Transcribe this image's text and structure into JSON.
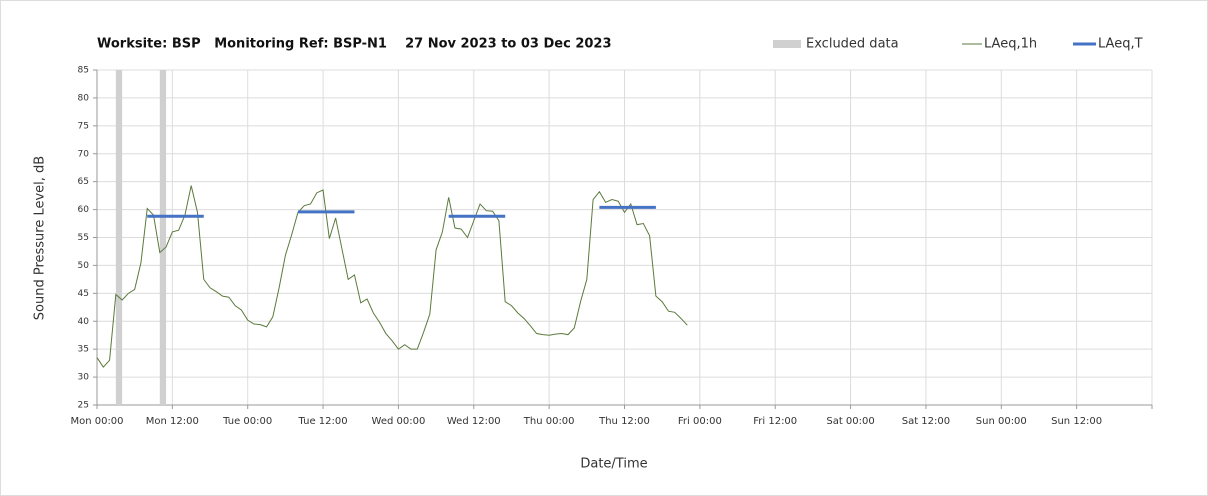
{
  "chart_data": {
    "type": "line",
    "title": "Worksite: BSP   Monitoring Ref: BSP-N1    27 Nov 2023 to 03 Dec 2023",
    "x_label": "Date/Time",
    "y_label": "Sound Pressure Level, dB",
    "xlim": [
      0,
      168
    ],
    "xticks": [
      {
        "value": 0,
        "label": "Mon 00:00"
      },
      {
        "value": 12,
        "label": "Mon 12:00"
      },
      {
        "value": 24,
        "label": "Tue 00:00"
      },
      {
        "value": 36,
        "label": "Tue 12:00"
      },
      {
        "value": 48,
        "label": "Wed 00:00"
      },
      {
        "value": 60,
        "label": "Wed 12:00"
      },
      {
        "value": 72,
        "label": "Thu 00:00"
      },
      {
        "value": 84,
        "label": "Thu 12:00"
      },
      {
        "value": 96,
        "label": "Fri 00:00"
      },
      {
        "value": 108,
        "label": "Fri 12:00"
      },
      {
        "value": 120,
        "label": "Sat 00:00"
      },
      {
        "value": 132,
        "label": "Sat 12:00"
      },
      {
        "value": 144,
        "label": "Sun 00:00"
      },
      {
        "value": 156,
        "label": "Sun 12:00"
      },
      {
        "value": 168,
        "label": ""
      }
    ],
    "ylim": [
      25,
      85
    ],
    "yticks": [
      25,
      30,
      35,
      40,
      45,
      50,
      55,
      60,
      65,
      70,
      75,
      80,
      85
    ],
    "grid": true,
    "legend": "top-right",
    "excluded": {
      "name": "Excluded data",
      "color": "#d0d0d0",
      "periods": [
        [
          3,
          4
        ],
        [
          10,
          11
        ]
      ]
    },
    "series": [
      {
        "name": "LAeq,1h",
        "color": "#5b7a3c",
        "x": [
          0,
          1,
          2,
          3,
          4,
          5,
          6,
          7,
          8,
          9,
          10,
          11,
          12,
          13,
          14,
          15,
          16,
          17,
          18,
          19,
          20,
          21,
          22,
          23,
          24,
          25,
          26,
          27,
          28,
          29,
          30,
          31,
          32,
          33,
          34,
          35,
          36,
          37,
          38,
          39,
          40,
          41,
          42,
          43,
          44,
          45,
          46,
          47,
          48,
          49,
          50,
          51,
          52,
          53,
          54,
          55,
          56,
          57,
          58,
          59,
          60,
          61,
          62,
          63,
          64,
          65,
          66,
          67,
          68,
          69,
          70,
          71,
          72,
          73,
          74,
          75,
          76,
          77,
          78,
          79,
          80,
          81,
          82,
          83,
          84,
          85,
          86,
          87,
          88,
          89,
          90,
          91,
          92,
          93,
          94
        ],
        "values": [
          33.5,
          31.8,
          33,
          44.8,
          43.8,
          45,
          45.7,
          50.5,
          60.2,
          59,
          52.3,
          53.3,
          56,
          56.3,
          59,
          64.3,
          59.5,
          47.5,
          46,
          45.3,
          44.5,
          44.3,
          42.8,
          42,
          40.2,
          39.5,
          39.4,
          39,
          40.8,
          46,
          51.8,
          55.5,
          59.5,
          60.7,
          61,
          63,
          63.5,
          54.8,
          58.5,
          53,
          47.5,
          48.3,
          43.3,
          44,
          41.5,
          39.8,
          37.8,
          36.5,
          35,
          35.8,
          35,
          35,
          38,
          41.3,
          52.8,
          56,
          62.2,
          56.7,
          56.5,
          55,
          58,
          61,
          59.8,
          59.7,
          58,
          43.5,
          42.8,
          41.5,
          40.5,
          39.2,
          37.8,
          37.6,
          37.5,
          37.7,
          37.8,
          37.6,
          38.8,
          43.5,
          47.5,
          61.8,
          63.2,
          61.3,
          61.8,
          61.5,
          59.5,
          61,
          57.3,
          57.5,
          55.3,
          44.5,
          43.5,
          41.8,
          41.6,
          40.5,
          39.3
        ]
      },
      {
        "name": "LAeq,T",
        "color": "#4472c4",
        "segments": [
          [
            8,
            17
          ],
          [
            32,
            41
          ],
          [
            56,
            65
          ],
          [
            80,
            89
          ]
        ],
        "values": [
          58.8,
          59.6,
          58.8,
          60.4
        ]
      }
    ]
  }
}
